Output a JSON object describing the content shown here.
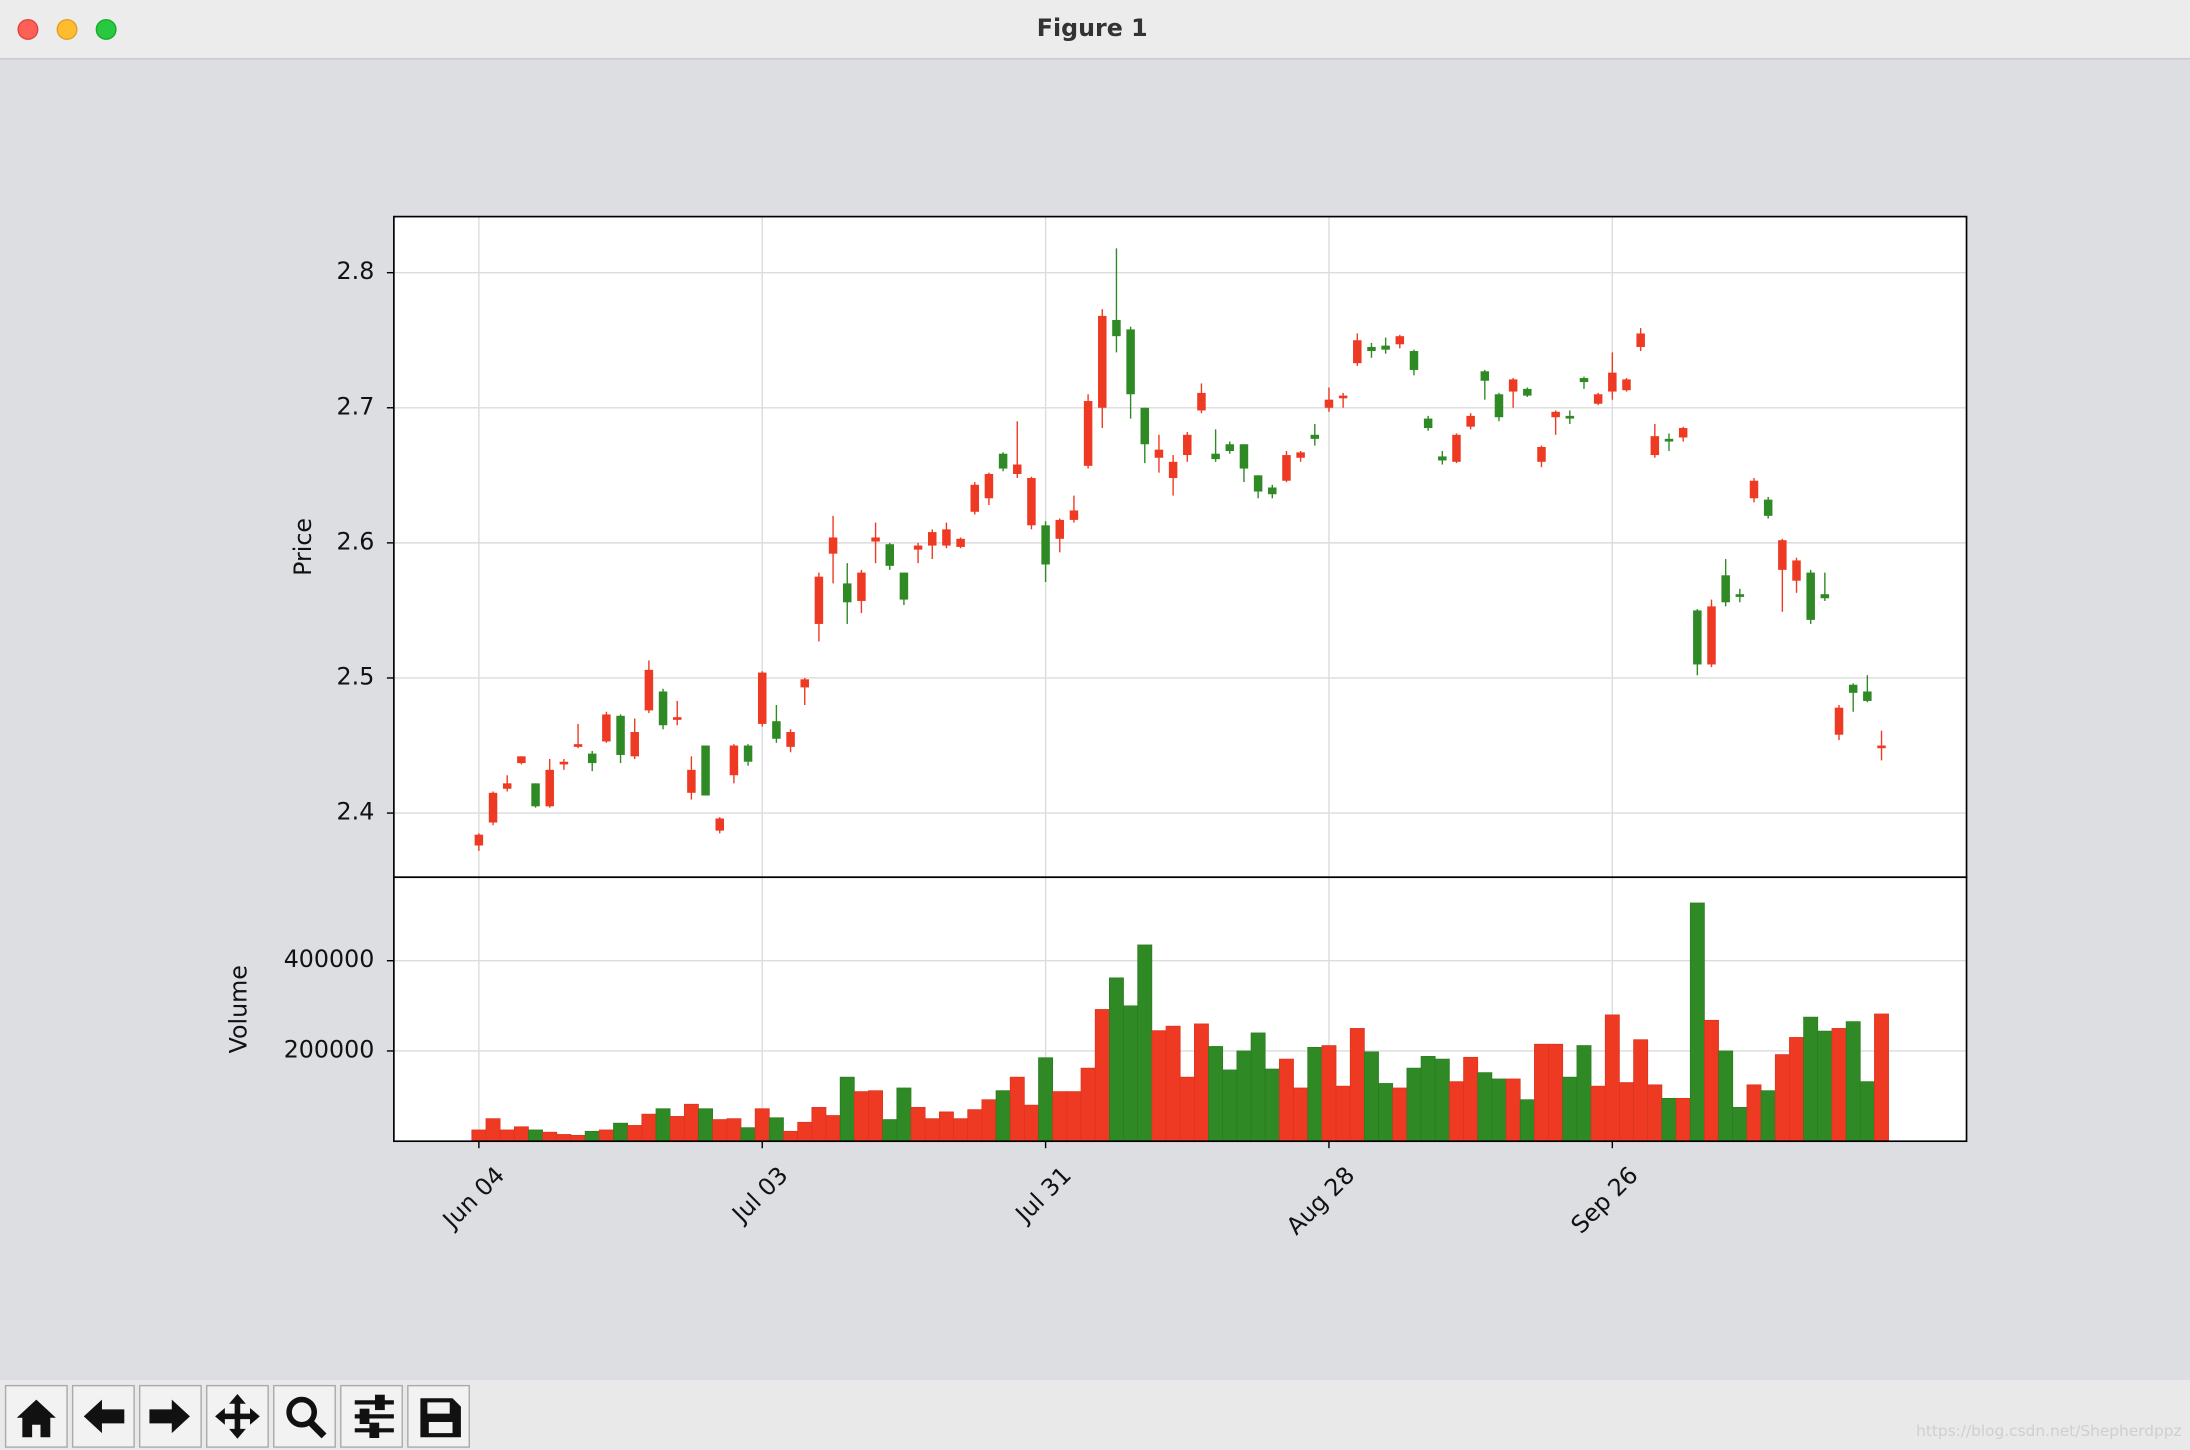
{
  "window": {
    "title": "Figure 1"
  },
  "watermark": "https://blog.csdn.net/Shepherdppz",
  "chart_data": [
    {
      "type": "candlestick",
      "ylabel": "Price",
      "grid": true,
      "up_color": "#ee3a22",
      "down_color": "#2f8a25",
      "xlim": [
        -6,
        105
      ],
      "ylim": [
        2.3525,
        2.8415
      ],
      "yticks": [
        2.4,
        2.5,
        2.6,
        2.7,
        2.8
      ],
      "open": [
        2.376,
        2.393,
        2.418,
        2.437,
        2.422,
        2.405,
        2.436,
        2.449,
        2.444,
        2.453,
        2.472,
        2.442,
        2.476,
        2.49,
        2.469,
        2.415,
        2.45,
        2.387,
        2.428,
        2.45,
        2.466,
        2.468,
        2.449,
        2.493,
        2.54,
        2.592,
        2.57,
        2.557,
        2.601,
        2.599,
        2.578,
        2.595,
        2.598,
        2.598,
        2.597,
        2.623,
        2.633,
        2.666,
        2.651,
        2.613,
        2.613,
        2.603,
        2.617,
        2.657,
        2.7,
        2.765,
        2.758,
        2.7,
        2.663,
        2.648,
        2.665,
        2.698,
        2.666,
        2.673,
        2.673,
        2.65,
        2.641,
        2.646,
        2.663,
        2.68,
        2.7,
        2.707,
        2.733,
        2.745,
        2.746,
        2.747,
        2.742,
        2.692,
        2.664,
        2.66,
        2.686,
        2.727,
        2.71,
        2.712,
        2.714,
        2.66,
        2.693,
        2.694,
        2.722,
        2.703,
        2.712,
        2.713,
        2.745,
        2.665,
        2.677,
        2.678,
        2.55,
        2.51,
        2.576,
        2.562,
        2.633,
        2.632,
        2.58,
        2.572,
        2.578,
        2.562,
        2.458,
        2.495,
        2.49,
        2.448
      ],
      "high": [
        2.385,
        2.416,
        2.428,
        2.442,
        2.422,
        2.44,
        2.44,
        2.466,
        2.446,
        2.475,
        2.473,
        2.47,
        2.513,
        2.492,
        2.483,
        2.442,
        2.45,
        2.397,
        2.451,
        2.451,
        2.505,
        2.48,
        2.462,
        2.5,
        2.578,
        2.62,
        2.585,
        2.58,
        2.615,
        2.6,
        2.578,
        2.6,
        2.61,
        2.615,
        2.604,
        2.645,
        2.652,
        2.667,
        2.69,
        2.649,
        2.616,
        2.618,
        2.635,
        2.71,
        2.773,
        2.818,
        2.76,
        2.7,
        2.68,
        2.665,
        2.682,
        2.718,
        2.684,
        2.675,
        2.673,
        2.65,
        2.643,
        2.668,
        2.668,
        2.688,
        2.715,
        2.711,
        2.755,
        2.748,
        2.752,
        2.754,
        2.743,
        2.694,
        2.668,
        2.681,
        2.696,
        2.728,
        2.711,
        2.722,
        2.715,
        2.672,
        2.698,
        2.698,
        2.723,
        2.711,
        2.741,
        2.722,
        2.759,
        2.688,
        2.681,
        2.686,
        2.551,
        2.558,
        2.588,
        2.566,
        2.648,
        2.634,
        2.603,
        2.589,
        2.58,
        2.578,
        2.48,
        2.496,
        2.502,
        2.461
      ],
      "low": [
        2.372,
        2.391,
        2.416,
        2.436,
        2.404,
        2.404,
        2.432,
        2.448,
        2.431,
        2.452,
        2.437,
        2.44,
        2.474,
        2.462,
        2.465,
        2.41,
        2.413,
        2.385,
        2.422,
        2.435,
        2.464,
        2.452,
        2.445,
        2.48,
        2.527,
        2.57,
        2.54,
        2.548,
        2.585,
        2.58,
        2.554,
        2.585,
        2.588,
        2.596,
        2.596,
        2.621,
        2.628,
        2.653,
        2.648,
        2.61,
        2.571,
        2.593,
        2.615,
        2.655,
        2.685,
        2.741,
        2.692,
        2.659,
        2.652,
        2.635,
        2.66,
        2.696,
        2.66,
        2.666,
        2.645,
        2.633,
        2.633,
        2.645,
        2.66,
        2.672,
        2.697,
        2.7,
        2.731,
        2.737,
        2.74,
        2.744,
        2.724,
        2.683,
        2.658,
        2.659,
        2.684,
        2.706,
        2.69,
        2.7,
        2.708,
        2.656,
        2.68,
        2.688,
        2.714,
        2.702,
        2.706,
        2.712,
        2.742,
        2.663,
        2.668,
        2.675,
        2.502,
        2.508,
        2.553,
        2.556,
        2.63,
        2.618,
        2.549,
        2.563,
        2.54,
        2.557,
        2.454,
        2.475,
        2.482,
        2.439
      ],
      "close": [
        2.384,
        2.415,
        2.422,
        2.442,
        2.405,
        2.432,
        2.438,
        2.451,
        2.437,
        2.473,
        2.443,
        2.46,
        2.506,
        2.465,
        2.471,
        2.432,
        2.413,
        2.396,
        2.45,
        2.438,
        2.504,
        2.455,
        2.46,
        2.499,
        2.575,
        2.604,
        2.556,
        2.578,
        2.604,
        2.583,
        2.558,
        2.598,
        2.608,
        2.61,
        2.603,
        2.643,
        2.651,
        2.655,
        2.658,
        2.648,
        2.584,
        2.617,
        2.624,
        2.705,
        2.768,
        2.753,
        2.71,
        2.673,
        2.669,
        2.66,
        2.68,
        2.711,
        2.662,
        2.668,
        2.655,
        2.638,
        2.636,
        2.665,
        2.667,
        2.677,
        2.706,
        2.709,
        2.75,
        2.742,
        2.743,
        2.753,
        2.728,
        2.685,
        2.661,
        2.68,
        2.694,
        2.72,
        2.693,
        2.721,
        2.709,
        2.671,
        2.697,
        2.692,
        2.719,
        2.71,
        2.726,
        2.721,
        2.755,
        2.679,
        2.675,
        2.685,
        2.51,
        2.553,
        2.556,
        2.56,
        2.646,
        2.62,
        2.602,
        2.587,
        2.543,
        2.559,
        2.478,
        2.489,
        2.483,
        2.45
      ]
    },
    {
      "type": "volume",
      "ylabel": "Volume",
      "grid": true,
      "xlim": [
        -6,
        105
      ],
      "ylim": [
        0,
        585000
      ],
      "yticks": [
        200000,
        400000
      ],
      "xticks": [
        {
          "value": 0,
          "label": "Jun 04"
        },
        {
          "value": 20,
          "label": "Jul 03"
        },
        {
          "value": 40,
          "label": "Jul 31"
        },
        {
          "value": 60,
          "label": "Aug 28"
        },
        {
          "value": 80,
          "label": "Sep 26"
        }
      ],
      "values": [
        25000,
        50000,
        25000,
        32000,
        25000,
        20000,
        15000,
        13000,
        22000,
        25000,
        40000,
        35000,
        60000,
        72000,
        55000,
        82000,
        72000,
        48000,
        50000,
        30000,
        72000,
        52000,
        22000,
        42000,
        75000,
        57000,
        142000,
        110000,
        112000,
        48000,
        118000,
        75000,
        50000,
        65000,
        50000,
        70000,
        92000,
        112000,
        142000,
        80000,
        185000,
        110000,
        110000,
        162000,
        292000,
        362000,
        300000,
        435000,
        245000,
        255000,
        142000,
        260000,
        210000,
        158000,
        200000,
        240000,
        160000,
        182000,
        118000,
        208000,
        212000,
        122000,
        250000,
        198000,
        128000,
        118000,
        162000,
        188000,
        182000,
        132000,
        186000,
        152000,
        138000,
        138000,
        92000,
        215000,
        215000,
        142000,
        212000,
        122000,
        280000,
        130000,
        225000,
        125000,
        95000,
        95000,
        528000,
        268000,
        200000,
        75000,
        125000,
        112000,
        192000,
        230000,
        275000,
        244000,
        250000,
        265000,
        132000,
        282000
      ]
    }
  ]
}
